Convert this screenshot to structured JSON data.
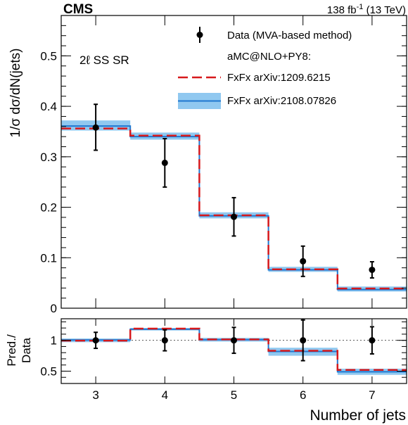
{
  "header": {
    "experiment": "CMS",
    "lumi_value": "138 fb",
    "lumi_exp": "-1",
    "lumi_energy": " (13 TeV)"
  },
  "region_label": "2ℓ SS SR",
  "legend": {
    "data": "Data (MVA-based method)",
    "group_title": "aMC@NLO+PY8:",
    "fxfx_old": "FxFx arXiv:1209.6215",
    "fxfx_new": "FxFx arXiv:2108.07826"
  },
  "colors": {
    "old_line": "#d7191c",
    "new_line": "#1f77d0",
    "new_band": "#90c8f0",
    "data": "#000000"
  },
  "chart_data": [
    {
      "type": "line",
      "panel": "main",
      "ylabel": "1/σ dσ/dN(jets)",
      "ylim": [
        0,
        0.58
      ],
      "yticks": [
        "0",
        "0.1",
        "0.2",
        "0.3",
        "0.4",
        "0.5"
      ],
      "yticks_values": [
        0,
        0.1,
        0.2,
        0.3,
        0.4,
        0.5
      ],
      "x_edges": [
        2.5,
        3.5,
        4.5,
        5.5,
        6.5,
        7.5
      ],
      "series": [
        {
          "name": "Data (MVA-based method)",
          "x": [
            3,
            4,
            5,
            6,
            7
          ],
          "values": [
            0.358,
            0.288,
            0.181,
            0.093,
            0.076
          ],
          "err_lo": [
            0.045,
            0.048,
            0.038,
            0.03,
            0.016
          ],
          "err_hi": [
            0.046,
            0.048,
            0.038,
            0.03,
            0.016
          ]
        },
        {
          "name": "FxFx arXiv:1209.6215",
          "values": [
            0.356,
            0.342,
            0.184,
            0.077,
            0.039
          ]
        },
        {
          "name": "FxFx arXiv:2108.07826",
          "values": [
            0.361,
            0.34,
            0.183,
            0.076,
            0.037
          ],
          "band_lo": [
            0.352,
            0.334,
            0.178,
            0.072,
            0.033
          ],
          "band_hi": [
            0.372,
            0.348,
            0.19,
            0.082,
            0.043
          ]
        }
      ]
    },
    {
      "type": "line",
      "panel": "ratio",
      "ylabel": "Pred./ Data",
      "xlabel": "Number of jets",
      "ylim": [
        0.3,
        1.35
      ],
      "yticks": [
        "0.5",
        "1"
      ],
      "yticks_values": [
        0.5,
        1
      ],
      "x_edges": [
        2.5,
        3.5,
        4.5,
        5.5,
        6.5,
        7.5
      ],
      "xticks": [
        "3",
        "4",
        "5",
        "6",
        "7"
      ],
      "xticks_values": [
        3,
        4,
        5,
        6,
        7
      ],
      "series": [
        {
          "name": "Data",
          "x": [
            3,
            4,
            5,
            6,
            7
          ],
          "values": [
            1,
            1,
            1,
            1,
            1
          ],
          "err_lo": [
            0.13,
            0.17,
            0.21,
            0.33,
            0.22
          ],
          "err_hi": [
            0.13,
            0.17,
            0.21,
            0.33,
            0.22
          ]
        },
        {
          "name": "FxFx arXiv:1209.6215",
          "values": [
            0.995,
            1.19,
            1.015,
            0.83,
            0.52
          ]
        },
        {
          "name": "FxFx arXiv:2108.07826",
          "values": [
            1.005,
            1.18,
            1.01,
            0.82,
            0.49
          ],
          "band_lo": [
            0.97,
            1.16,
            0.98,
            0.75,
            0.44
          ],
          "band_hi": [
            1.03,
            1.2,
            1.04,
            0.88,
            0.54
          ]
        }
      ]
    }
  ]
}
